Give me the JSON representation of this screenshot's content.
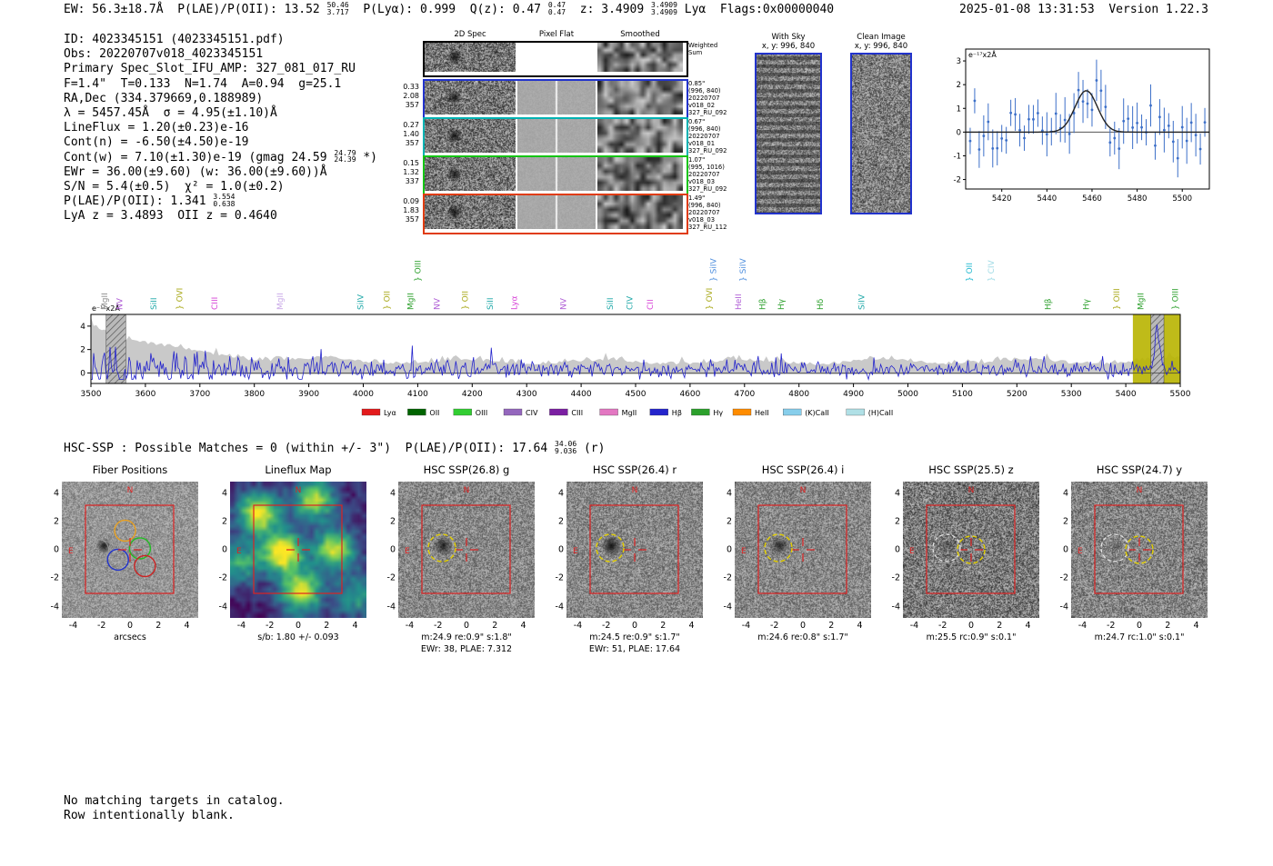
{
  "header": {
    "segments": [
      {
        "t": "EW: 56.3±18.7Å  P(LAE)/P(OII): 13.52 "
      },
      {
        "frac": [
          "50.46",
          "3.717"
        ]
      },
      {
        "t": "  P(Lyα): 0.999  Q(z): 0.47 "
      },
      {
        "frac": [
          "0.47",
          "0.47"
        ]
      },
      {
        "t": "  z: 3.4909 "
      },
      {
        "frac": [
          "3.4909",
          "3.4909"
        ]
      },
      {
        "t": " Lyα  Flags:0x00000040"
      }
    ],
    "timestamp": "2025-01-08 13:31:53  Version 1.22.3"
  },
  "info_lines": [
    [
      {
        "t": "ID: 4023345151 (4023345151.pdf)"
      }
    ],
    [
      {
        "t": "Obs: 20220707v018_4023345151"
      }
    ],
    [
      {
        "t": "Primary Spec_Slot_IFU_AMP: 327_081_017_RU"
      }
    ],
    [
      {
        "t": "F=1.4\"  T=0.133  N=1.74  A=0.94  g=25.1"
      }
    ],
    [
      {
        "t": "RA,Dec (334.379669,0.188989)"
      }
    ],
    [
      {
        "t": "λ = 5457.45Å  σ = 4.95(±1.10)Å"
      }
    ],
    [
      {
        "t": "LineFlux = 1.20(±0.23)e-16"
      }
    ],
    [
      {
        "t": "Cont(n) = -6.50(±4.50)e-19"
      }
    ],
    [
      {
        "t": "Cont(w) = 7.10(±1.30)e-19 (gmag 24.59 "
      },
      {
        "frac": [
          "24.79",
          "24.39"
        ]
      },
      {
        "t": " *)"
      }
    ],
    [
      {
        "t": "EWr = 36.00(±9.60) (w: 36.00(±9.60))Å"
      }
    ],
    [
      {
        "t": "S/N = 5.4(±0.5)  χ² = 1.0(±0.2)"
      }
    ],
    [
      {
        "t": "P(LAE)/P(OII): 1.341 "
      },
      {
        "frac": [
          "3.554",
          "0.638"
        ]
      }
    ],
    [
      {
        "t": "LyA z = 3.4893  OII z = 0.4640"
      }
    ]
  ],
  "spec2d": {
    "col_headers": [
      "2D Spec",
      "Pixel Flat",
      "Smoothed"
    ],
    "rows": [
      {
        "border": "#000000",
        "left": [],
        "right": [
          "Weighted",
          "Sum"
        ],
        "flat": false
      },
      {
        "border": "#2233cc",
        "left": [
          "0.33",
          "2.08",
          "357"
        ],
        "right": [
          "0.85\"",
          "(996, 840)",
          "20220707",
          "v018_02",
          "327_RU_092"
        ],
        "flat": true
      },
      {
        "border": "#00b2b2",
        "left": [
          "0.27",
          "1.40",
          "357"
        ],
        "right": [
          "0.67\"",
          "(996, 840)",
          "20220707",
          "v018_01",
          "327_RU_092"
        ],
        "flat": true
      },
      {
        "border": "#15c515",
        "left": [
          "0.15",
          "1.32",
          "337"
        ],
        "right": [
          "1.07\"",
          "(995, 1016)",
          "20220707",
          "v018_03",
          "327_RU_092"
        ],
        "flat": true
      },
      {
        "border": "#e03c10",
        "left": [
          "0.09",
          "1.83",
          "357"
        ],
        "right": [
          "1.49\"",
          "(996, 840)",
          "20220707",
          "v018_03",
          "327_RU_112"
        ],
        "flat": true
      }
    ]
  },
  "sky_panels": [
    {
      "title": "With Sky",
      "coords": "x, y: 996, 840",
      "pattern": "stripes"
    },
    {
      "title": "Clean Image",
      "coords": "x, y: 996, 840",
      "pattern": "noise"
    }
  ],
  "chart_data": [
    {
      "type": "line",
      "name": "emission-line-fit",
      "units_label": "e⁻¹⁷x2Å",
      "x_range": [
        5404,
        5512
      ],
      "y_range": [
        -2.4,
        3.5
      ],
      "x_ticks": [
        5420,
        5440,
        5460,
        5480,
        5500
      ],
      "y_ticks": [
        -2,
        -1,
        0,
        1,
        2,
        3
      ],
      "gaussian": {
        "center": 5457.45,
        "sigma": 4.95,
        "amplitude": 1.75
      },
      "point_step": 2,
      "noise_sigma": 0.55,
      "err_bar": 0.75,
      "seed": 13
    },
    {
      "type": "line",
      "name": "full-spectrum",
      "units_label": "e⁻¹⁷x2Å",
      "x_range": [
        3500,
        5500
      ],
      "y_range": [
        -0.9,
        5.0
      ],
      "x_ticks": [
        3500,
        3600,
        3700,
        3800,
        3900,
        4000,
        4100,
        4200,
        4300,
        4400,
        4500,
        4600,
        4700,
        4800,
        4900,
        5000,
        5100,
        5200,
        5300,
        5400,
        5500
      ],
      "y_ticks": [
        0,
        2,
        4
      ],
      "emission": {
        "center": 5457.45,
        "sigma": 4.95,
        "amplitude": 3.2
      },
      "highlight_band": [
        5413,
        5500
      ],
      "hatch_boxes": [
        [
          3528,
          3564
        ],
        [
          5446,
          5470
        ]
      ],
      "seed": 7,
      "line_labels": [
        [
          3530,
          "MgII",
          "#8c8c8c",
          0
        ],
        [
          3558,
          "NV",
          "#b05fd6",
          0
        ],
        [
          3620,
          "SiII",
          "#1fa8a8",
          0
        ],
        [
          3668,
          "} OVI",
          "#a8a818",
          0
        ],
        [
          3732,
          "CIII",
          "#d63fd6",
          0
        ],
        [
          3852,
          "MgII",
          "#c9a9e8",
          0
        ],
        [
          4000,
          "SiIV",
          "#1fa8a8",
          0
        ],
        [
          4048,
          "} OII",
          "#a8a818",
          0
        ],
        [
          4092,
          "MgII",
          "#2ca02c",
          0
        ],
        [
          4105,
          "} OIII",
          "#2ca02c",
          1
        ],
        [
          4140,
          "NV",
          "#b05fd6",
          0
        ],
        [
          4192,
          "} OII",
          "#a8a818",
          0
        ],
        [
          4238,
          "SiII",
          "#1fa8a8",
          0
        ],
        [
          4282,
          "Lyα",
          "#d63fd6",
          0
        ],
        [
          4372,
          "NV",
          "#b05fd6",
          0
        ],
        [
          4458,
          "SiII",
          "#1fa8a8",
          0
        ],
        [
          4494,
          "CIV",
          "#1fa8a8",
          0
        ],
        [
          4532,
          "CII",
          "#d63fd6",
          0
        ],
        [
          4640,
          "} OVI",
          "#a8a818",
          0
        ],
        [
          4648,
          "} SiIV",
          "#4f8fde",
          1
        ],
        [
          4694,
          "HeII",
          "#b05fd6",
          0
        ],
        [
          4702,
          "} SiIV",
          "#4f8fde",
          1
        ],
        [
          4738,
          "Hβ",
          "#2ca02c",
          0
        ],
        [
          4772,
          "Hγ",
          "#2ca02c",
          0
        ],
        [
          4844,
          "Hδ",
          "#2ca02c",
          0
        ],
        [
          4920,
          "SiIV",
          "#1fa8a8",
          0
        ],
        [
          5118,
          "} OII",
          "#20b8cf",
          1
        ],
        [
          5158,
          "} CIV",
          "#9edae5",
          1
        ],
        [
          5262,
          "Hβ",
          "#2ca02c",
          0
        ],
        [
          5332,
          "Hγ",
          "#2ca02c",
          0
        ],
        [
          5388,
          "} OIII",
          "#a8a818",
          0
        ],
        [
          5432,
          "MgII",
          "#2ca02c",
          0
        ],
        [
          5496,
          "} OIII",
          "#2ca02c",
          0
        ]
      ],
      "legend": [
        [
          "Lyα",
          "#e31a1c"
        ],
        [
          "OII",
          "#006400"
        ],
        [
          "OIII",
          "#32cd32"
        ],
        [
          "CIV",
          "#9467bd"
        ],
        [
          "CIII",
          "#7b1fa2"
        ],
        [
          "MgII",
          "#e377c2"
        ],
        [
          "Hβ",
          "#2424cc"
        ],
        [
          "Hγ",
          "#2ca02c"
        ],
        [
          "HeII",
          "#ff8c00"
        ],
        [
          "(K)CaII",
          "#87ceeb"
        ],
        [
          "(H)CaII",
          "#b0e0e6"
        ]
      ]
    }
  ],
  "hsc_line": {
    "segments": [
      {
        "t": "HSC-SSP : Possible Matches = 0 (within +/- 3\")  P(LAE)/P(OII): 17.64 "
      },
      {
        "frac": [
          "34.06",
          "9.036"
        ]
      },
      {
        "t": " (r)"
      }
    ]
  },
  "cutout_axis": {
    "ticks": [
      -4,
      -2,
      0,
      2,
      4
    ],
    "range": [
      -4.8,
      4.8
    ]
  },
  "cutouts": [
    {
      "title": "Fiber Positions",
      "xlabel": "arcsecs",
      "captions": [],
      "type": "fibers",
      "seed": 40,
      "fiber_colors": [
        "#e8a020",
        "#2233cc",
        "#22bb22",
        "#cc2222"
      ],
      "overlay": {
        "box": true,
        "cross": true,
        "compass": true,
        "fibers": true
      }
    },
    {
      "title": "Lineflux Map",
      "captions": [
        "s/b: 1.80 +/- 0.093"
      ],
      "type": "viridis",
      "overlay": {
        "box": true,
        "cross": true,
        "compass": true
      }
    },
    {
      "title": "HSC SSP(26.8) g",
      "captions": [
        "m:24.9 re:0.9\" s:1.8\"",
        "EWr: 38, PLAE: 7.312"
      ],
      "type": "noise",
      "seed": 21,
      "blob": [
        0.33,
        0.47,
        11,
        0.8
      ],
      "overlay": {
        "box": true,
        "cross": true,
        "compass": true,
        "circle": "left"
      }
    },
    {
      "title": "HSC SSP(26.4) r",
      "captions": [
        "m:24.5 re:0.9\" s:1.7\"",
        "EWr: 51, PLAE: 17.64"
      ],
      "type": "noise",
      "seed": 22,
      "blob": [
        0.33,
        0.47,
        12,
        0.9
      ],
      "overlay": {
        "box": true,
        "cross": true,
        "compass": true,
        "circle": "left"
      }
    },
    {
      "title": "HSC SSP(26.4) i",
      "captions": [
        "m:24.6 re:0.8\" s:1.7\""
      ],
      "type": "noise",
      "seed": 23,
      "blob": [
        0.33,
        0.47,
        11,
        0.75
      ],
      "overlay": {
        "box": true,
        "cross": true,
        "compass": true,
        "circle": "left"
      }
    },
    {
      "title": "HSC SSP(25.5) z",
      "captions": [
        "m:25.5 rc:0.9\" s:0.1\""
      ],
      "type": "noise",
      "seed": 24,
      "base": 122,
      "amp": 150,
      "blob": [
        0.33,
        0.47,
        8,
        0.35
      ],
      "overlay": {
        "box": true,
        "cross": true,
        "compass": true,
        "circle": "center",
        "ghost": true
      }
    },
    {
      "title": "HSC SSP(24.7) y",
      "captions": [
        "m:24.7 rc:1.0\" s:0.1\""
      ],
      "type": "noise",
      "seed": 25,
      "base": 132,
      "amp": 125,
      "blob": [
        0.33,
        0.47,
        8,
        0.3
      ],
      "overlay": {
        "box": true,
        "cross": true,
        "compass": true,
        "circle": "center",
        "ghost": true
      }
    }
  ],
  "footer_lines": [
    "No matching targets in catalog.",
    "Row intentionally blank."
  ]
}
